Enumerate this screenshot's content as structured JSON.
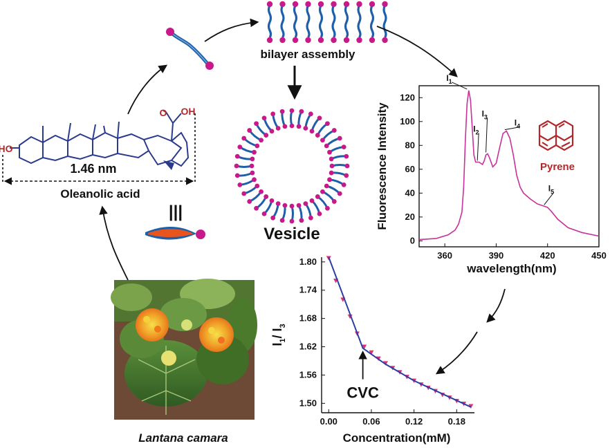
{
  "labels": {
    "bilayer": "bilayer assembly",
    "vesicle": "Vesicle",
    "molecule": "Oleanolic acid",
    "length": "1.46 nm",
    "plant": "Lantana camara",
    "equiv": "|||",
    "ho": "HO",
    "carbonyl_o": "O",
    "oh": "OH",
    "pyrene": "Pyrene"
  },
  "colors": {
    "head": "#c8198a",
    "tail": "#1f5fa8",
    "skeleton": "#2a3a8c",
    "heteroatom": "#b2282a",
    "spectrum": "#c8309a",
    "fit_line": "#2b3ea0",
    "markers": "#e0307a",
    "tail_orange": "#e8541e"
  },
  "chart_data": [
    {
      "type": "line",
      "title": "",
      "xlabel": "wavelength(nm)",
      "ylabel": "Fluorescence Intensity",
      "xlim": [
        345,
        450
      ],
      "ylim": [
        -5,
        130
      ],
      "xticks": [
        360,
        390,
        420,
        450
      ],
      "yticks": [
        0,
        20,
        40,
        60,
        80,
        100,
        120
      ],
      "grid": false,
      "series": [
        {
          "x": [
            345,
            355,
            362,
            366,
            368,
            370,
            371,
            372,
            373,
            374,
            375,
            376,
            377,
            378,
            380,
            382,
            383,
            384,
            385,
            386,
            388,
            390,
            392,
            394,
            396,
            398,
            400,
            402,
            404,
            406,
            410,
            414,
            418,
            420,
            422,
            426,
            432,
            440,
            450
          ],
          "y": [
            1,
            2,
            5,
            9,
            14,
            24,
            45,
            85,
            115,
            126,
            118,
            95,
            72,
            66,
            66,
            64,
            67,
            72,
            73,
            70,
            62,
            65,
            78,
            90,
            92,
            86,
            72,
            55,
            45,
            40,
            35,
            31,
            29,
            28,
            25,
            18,
            11,
            7,
            4
          ]
        }
      ],
      "annotations": [
        {
          "label": "I",
          "sub": "1",
          "x": 373,
          "y": 126
        },
        {
          "label": "I",
          "sub": "2",
          "x": 379,
          "y": 66
        },
        {
          "label": "I",
          "sub": "3",
          "x": 384,
          "y": 73
        },
        {
          "label": "I",
          "sub": "4",
          "x": 395,
          "y": 92
        },
        {
          "label": "I",
          "sub": "5",
          "x": 418,
          "y": 29
        }
      ]
    },
    {
      "type": "scatter",
      "title": "",
      "xlabel": "Concentration(mM)",
      "ylabel_parts": [
        "I",
        "1",
        "/ I",
        "3"
      ],
      "xlim": [
        -0.01,
        0.205
      ],
      "ylim": [
        1.48,
        1.81
      ],
      "xticks": [
        "0.00",
        "0.06",
        "0.12",
        "0.18"
      ],
      "yticks": [
        "1.50",
        "1.56",
        "1.62",
        "1.68",
        "1.74",
        "1.80"
      ],
      "grid": false,
      "series": [
        {
          "x": [
            0.0,
            0.01,
            0.02,
            0.03,
            0.04,
            0.05,
            0.06,
            0.07,
            0.08,
            0.09,
            0.1,
            0.11,
            0.12,
            0.13,
            0.14,
            0.15,
            0.16,
            0.17,
            0.18,
            0.19,
            0.2
          ],
          "y": [
            1.808,
            1.76,
            1.72,
            1.684,
            1.648,
            1.62,
            1.608,
            1.595,
            1.585,
            1.575,
            1.566,
            1.556,
            1.548,
            1.54,
            1.533,
            1.526,
            1.518,
            1.512,
            1.505,
            1.499,
            1.494
          ]
        }
      ],
      "fit": {
        "x": [
          0.0,
          0.048,
          0.08,
          0.12,
          0.16,
          0.2
        ],
        "y": [
          1.81,
          1.617,
          1.583,
          1.548,
          1.52,
          1.492
        ]
      },
      "annotations": [
        {
          "text": "CVC",
          "x": 0.048,
          "y": 1.617
        }
      ]
    }
  ]
}
